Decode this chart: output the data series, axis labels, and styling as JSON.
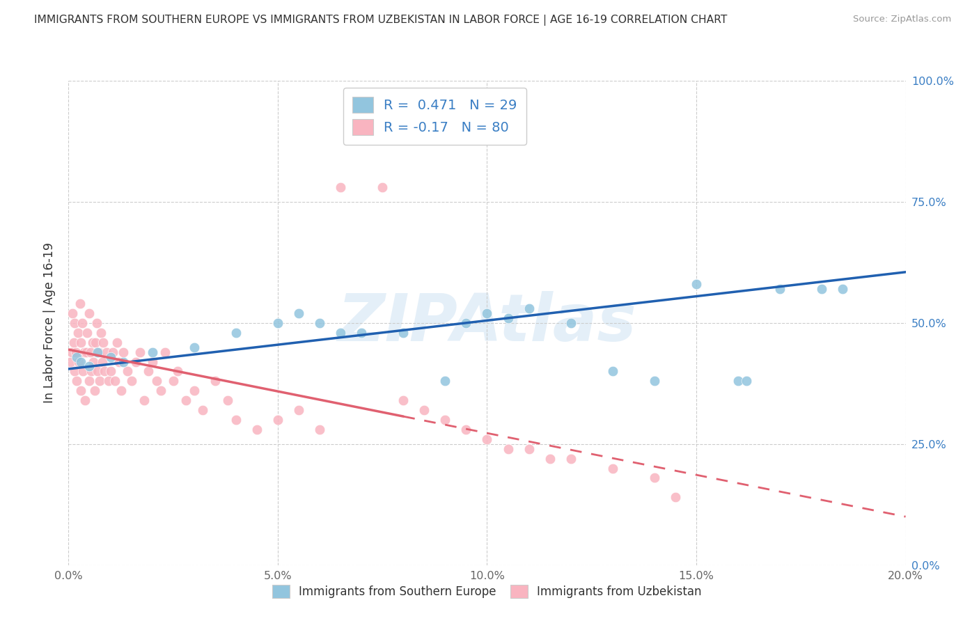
{
  "title": "IMMIGRANTS FROM SOUTHERN EUROPE VS IMMIGRANTS FROM UZBEKISTAN IN LABOR FORCE | AGE 16-19 CORRELATION CHART",
  "source": "Source: ZipAtlas.com",
  "ylabel": "In Labor Force | Age 16-19",
  "xtick_vals": [
    0,
    5,
    10,
    15,
    20
  ],
  "xtick_labels": [
    "0.0%",
    "5.0%",
    "10.0%",
    "15.0%",
    "20.0%"
  ],
  "ytick_vals": [
    0,
    25,
    50,
    75,
    100
  ],
  "ytick_labels": [
    "0.0%",
    "25.0%",
    "50.0%",
    "75.0%",
    "100.0%"
  ],
  "blue_R": 0.471,
  "blue_N": 29,
  "pink_R": -0.17,
  "pink_N": 80,
  "blue_color": "#92C5DE",
  "pink_color": "#F9B4C0",
  "blue_line_color": "#2060B0",
  "pink_line_color": "#E06070",
  "xlim": [
    0,
    20
  ],
  "ylim": [
    0,
    100
  ],
  "watermark": "ZIPAtlas",
  "blue_x": [
    0.2,
    0.3,
    0.5,
    0.7,
    1.0,
    1.3,
    2.0,
    3.0,
    4.0,
    5.0,
    5.5,
    6.0,
    6.5,
    7.0,
    8.0,
    9.0,
    9.5,
    10.0,
    10.5,
    11.0,
    12.0,
    13.0,
    14.0,
    15.0,
    16.0,
    16.2,
    17.0,
    18.0,
    18.5
  ],
  "blue_y": [
    43,
    42,
    41,
    44,
    43,
    42,
    44,
    45,
    48,
    50,
    52,
    50,
    48,
    48,
    48,
    38,
    50,
    52,
    51,
    53,
    50,
    40,
    38,
    58,
    38,
    38,
    57,
    57,
    57
  ],
  "pink_x": [
    0.05,
    0.08,
    0.1,
    0.12,
    0.15,
    0.15,
    0.18,
    0.2,
    0.22,
    0.25,
    0.28,
    0.3,
    0.3,
    0.32,
    0.35,
    0.38,
    0.4,
    0.42,
    0.45,
    0.5,
    0.5,
    0.52,
    0.55,
    0.58,
    0.6,
    0.62,
    0.65,
    0.68,
    0.7,
    0.72,
    0.75,
    0.78,
    0.8,
    0.82,
    0.85,
    0.9,
    0.95,
    1.0,
    1.05,
    1.1,
    1.15,
    1.2,
    1.25,
    1.3,
    1.4,
    1.5,
    1.6,
    1.7,
    1.8,
    1.9,
    2.0,
    2.1,
    2.2,
    2.3,
    2.5,
    2.6,
    2.8,
    3.0,
    3.2,
    3.5,
    3.8,
    4.0,
    4.5,
    5.0,
    5.5,
    6.0,
    6.5,
    7.5,
    8.0,
    8.5,
    9.0,
    9.5,
    10.0,
    10.5,
    11.0,
    11.5,
    12.0,
    13.0,
    14.0,
    14.5
  ],
  "pink_y": [
    42,
    44,
    52,
    46,
    40,
    50,
    44,
    38,
    48,
    42,
    54,
    36,
    46,
    50,
    40,
    44,
    34,
    44,
    48,
    38,
    52,
    44,
    40,
    46,
    42,
    36,
    46,
    50,
    40,
    44,
    38,
    48,
    42,
    46,
    40,
    44,
    38,
    40,
    44,
    38,
    46,
    42,
    36,
    44,
    40,
    38,
    42,
    44,
    34,
    40,
    42,
    38,
    36,
    44,
    38,
    40,
    34,
    36,
    32,
    38,
    34,
    30,
    28,
    30,
    32,
    28,
    78,
    78,
    34,
    32,
    30,
    28,
    26,
    24,
    24,
    22,
    22,
    20,
    18,
    14
  ],
  "pink_solid_end_x": 8.0,
  "blue_line_y_at_0": 40.5,
  "blue_line_y_at_20": 60.5,
  "pink_line_y_at_0": 44.5,
  "pink_line_y_at_20": 10.0
}
